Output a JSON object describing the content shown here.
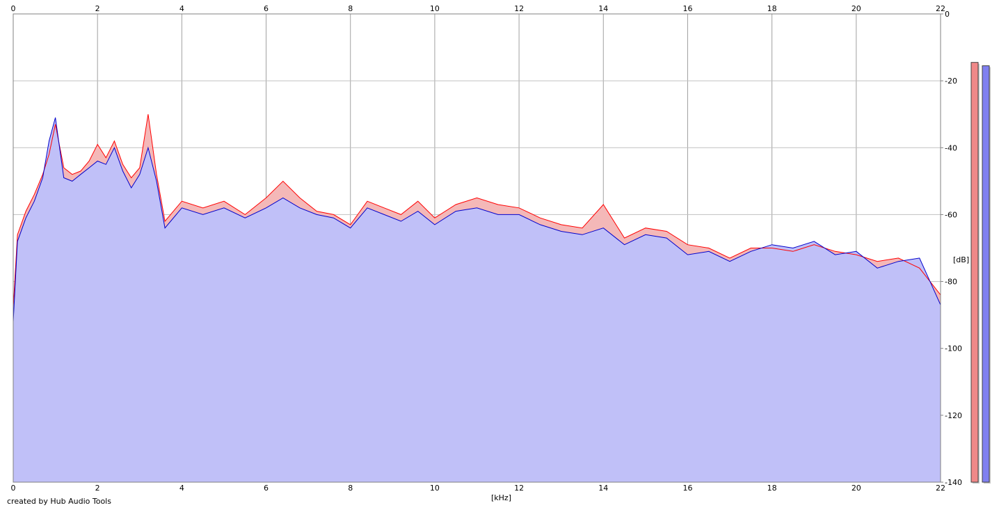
{
  "chart_data": {
    "type": "area",
    "xlabel": "[kHz]",
    "ylabel": "[dB]",
    "xlim": [
      0,
      22
    ],
    "ylim": [
      -140,
      0
    ],
    "x_ticks": [
      0,
      2,
      4,
      6,
      8,
      10,
      12,
      14,
      16,
      18,
      20,
      22
    ],
    "y_ticks": [
      0,
      -20,
      -40,
      -60,
      -80,
      -100,
      -120,
      -140
    ],
    "grid": true,
    "series": [
      {
        "channel": "left",
        "color": "#ff0000",
        "fill": "#f4b8b8",
        "x": [
          0,
          0.1,
          0.3,
          0.5,
          0.7,
          0.85,
          1.0,
          1.2,
          1.4,
          1.6,
          1.8,
          2.0,
          2.2,
          2.4,
          2.6,
          2.8,
          3.0,
          3.2,
          3.4,
          3.6,
          4.0,
          4.5,
          5.0,
          5.5,
          6.0,
          6.4,
          6.8,
          7.2,
          7.6,
          8.0,
          8.4,
          8.8,
          9.2,
          9.6,
          10.0,
          10.5,
          11.0,
          11.5,
          12.0,
          12.5,
          13.0,
          13.5,
          14.0,
          14.5,
          15.0,
          15.5,
          16.0,
          16.5,
          17.0,
          17.5,
          18.0,
          18.5,
          19.0,
          19.5,
          20.0,
          20.5,
          21.0,
          21.5,
          22.0
        ],
        "y": [
          -88,
          -66,
          -59,
          -54,
          -48,
          -42,
          -33,
          -46,
          -48,
          -47,
          -44,
          -39,
          -43,
          -38,
          -45,
          -49,
          -46,
          -30,
          -48,
          -62,
          -56,
          -58,
          -56,
          -60,
          -55,
          -50,
          -55,
          -59,
          -60,
          -63,
          -56,
          -58,
          -60,
          -56,
          -61,
          -57,
          -55,
          -57,
          -58,
          -61,
          -63,
          -64,
          -57,
          -67,
          -64,
          -65,
          -69,
          -70,
          -73,
          -70,
          -70,
          -71,
          -69,
          -71,
          -72,
          -74,
          -73,
          -76,
          -84
        ]
      },
      {
        "channel": "right",
        "color": "#0000cc",
        "fill": "#c0c0f8",
        "x": [
          0,
          0.1,
          0.3,
          0.5,
          0.7,
          0.85,
          1.0,
          1.2,
          1.4,
          1.6,
          1.8,
          2.0,
          2.2,
          2.4,
          2.6,
          2.8,
          3.0,
          3.2,
          3.4,
          3.6,
          4.0,
          4.5,
          5.0,
          5.5,
          6.0,
          6.4,
          6.8,
          7.2,
          7.6,
          8.0,
          8.4,
          8.8,
          9.2,
          9.6,
          10.0,
          10.5,
          11.0,
          11.5,
          12.0,
          12.5,
          13.0,
          13.5,
          14.0,
          14.5,
          15.0,
          15.5,
          16.0,
          16.5,
          17.0,
          17.5,
          18.0,
          18.5,
          19.0,
          19.5,
          20.0,
          20.5,
          21.0,
          21.5,
          22.0
        ],
        "y": [
          -92,
          -68,
          -61,
          -56,
          -49,
          -38,
          -31,
          -49,
          -50,
          -48,
          -46,
          -44,
          -45,
          -40,
          -47,
          -52,
          -48,
          -40,
          -50,
          -64,
          -58,
          -60,
          -58,
          -61,
          -58,
          -55,
          -58,
          -60,
          -61,
          -64,
          -58,
          -60,
          -62,
          -59,
          -63,
          -59,
          -58,
          -60,
          -60,
          -63,
          -65,
          -66,
          -64,
          -69,
          -66,
          -67,
          -72,
          -71,
          -74,
          -71,
          -69,
          -70,
          -68,
          -72,
          -71,
          -76,
          -74,
          -73,
          -87
        ]
      }
    ],
    "level_meters": [
      {
        "channel": "left",
        "color": "#f08888",
        "value_db": -14.5
      },
      {
        "channel": "right",
        "color": "#8080f0",
        "value_db": -15.5
      }
    ]
  },
  "footer": {
    "credit": "created by Hub Audio Tools"
  }
}
